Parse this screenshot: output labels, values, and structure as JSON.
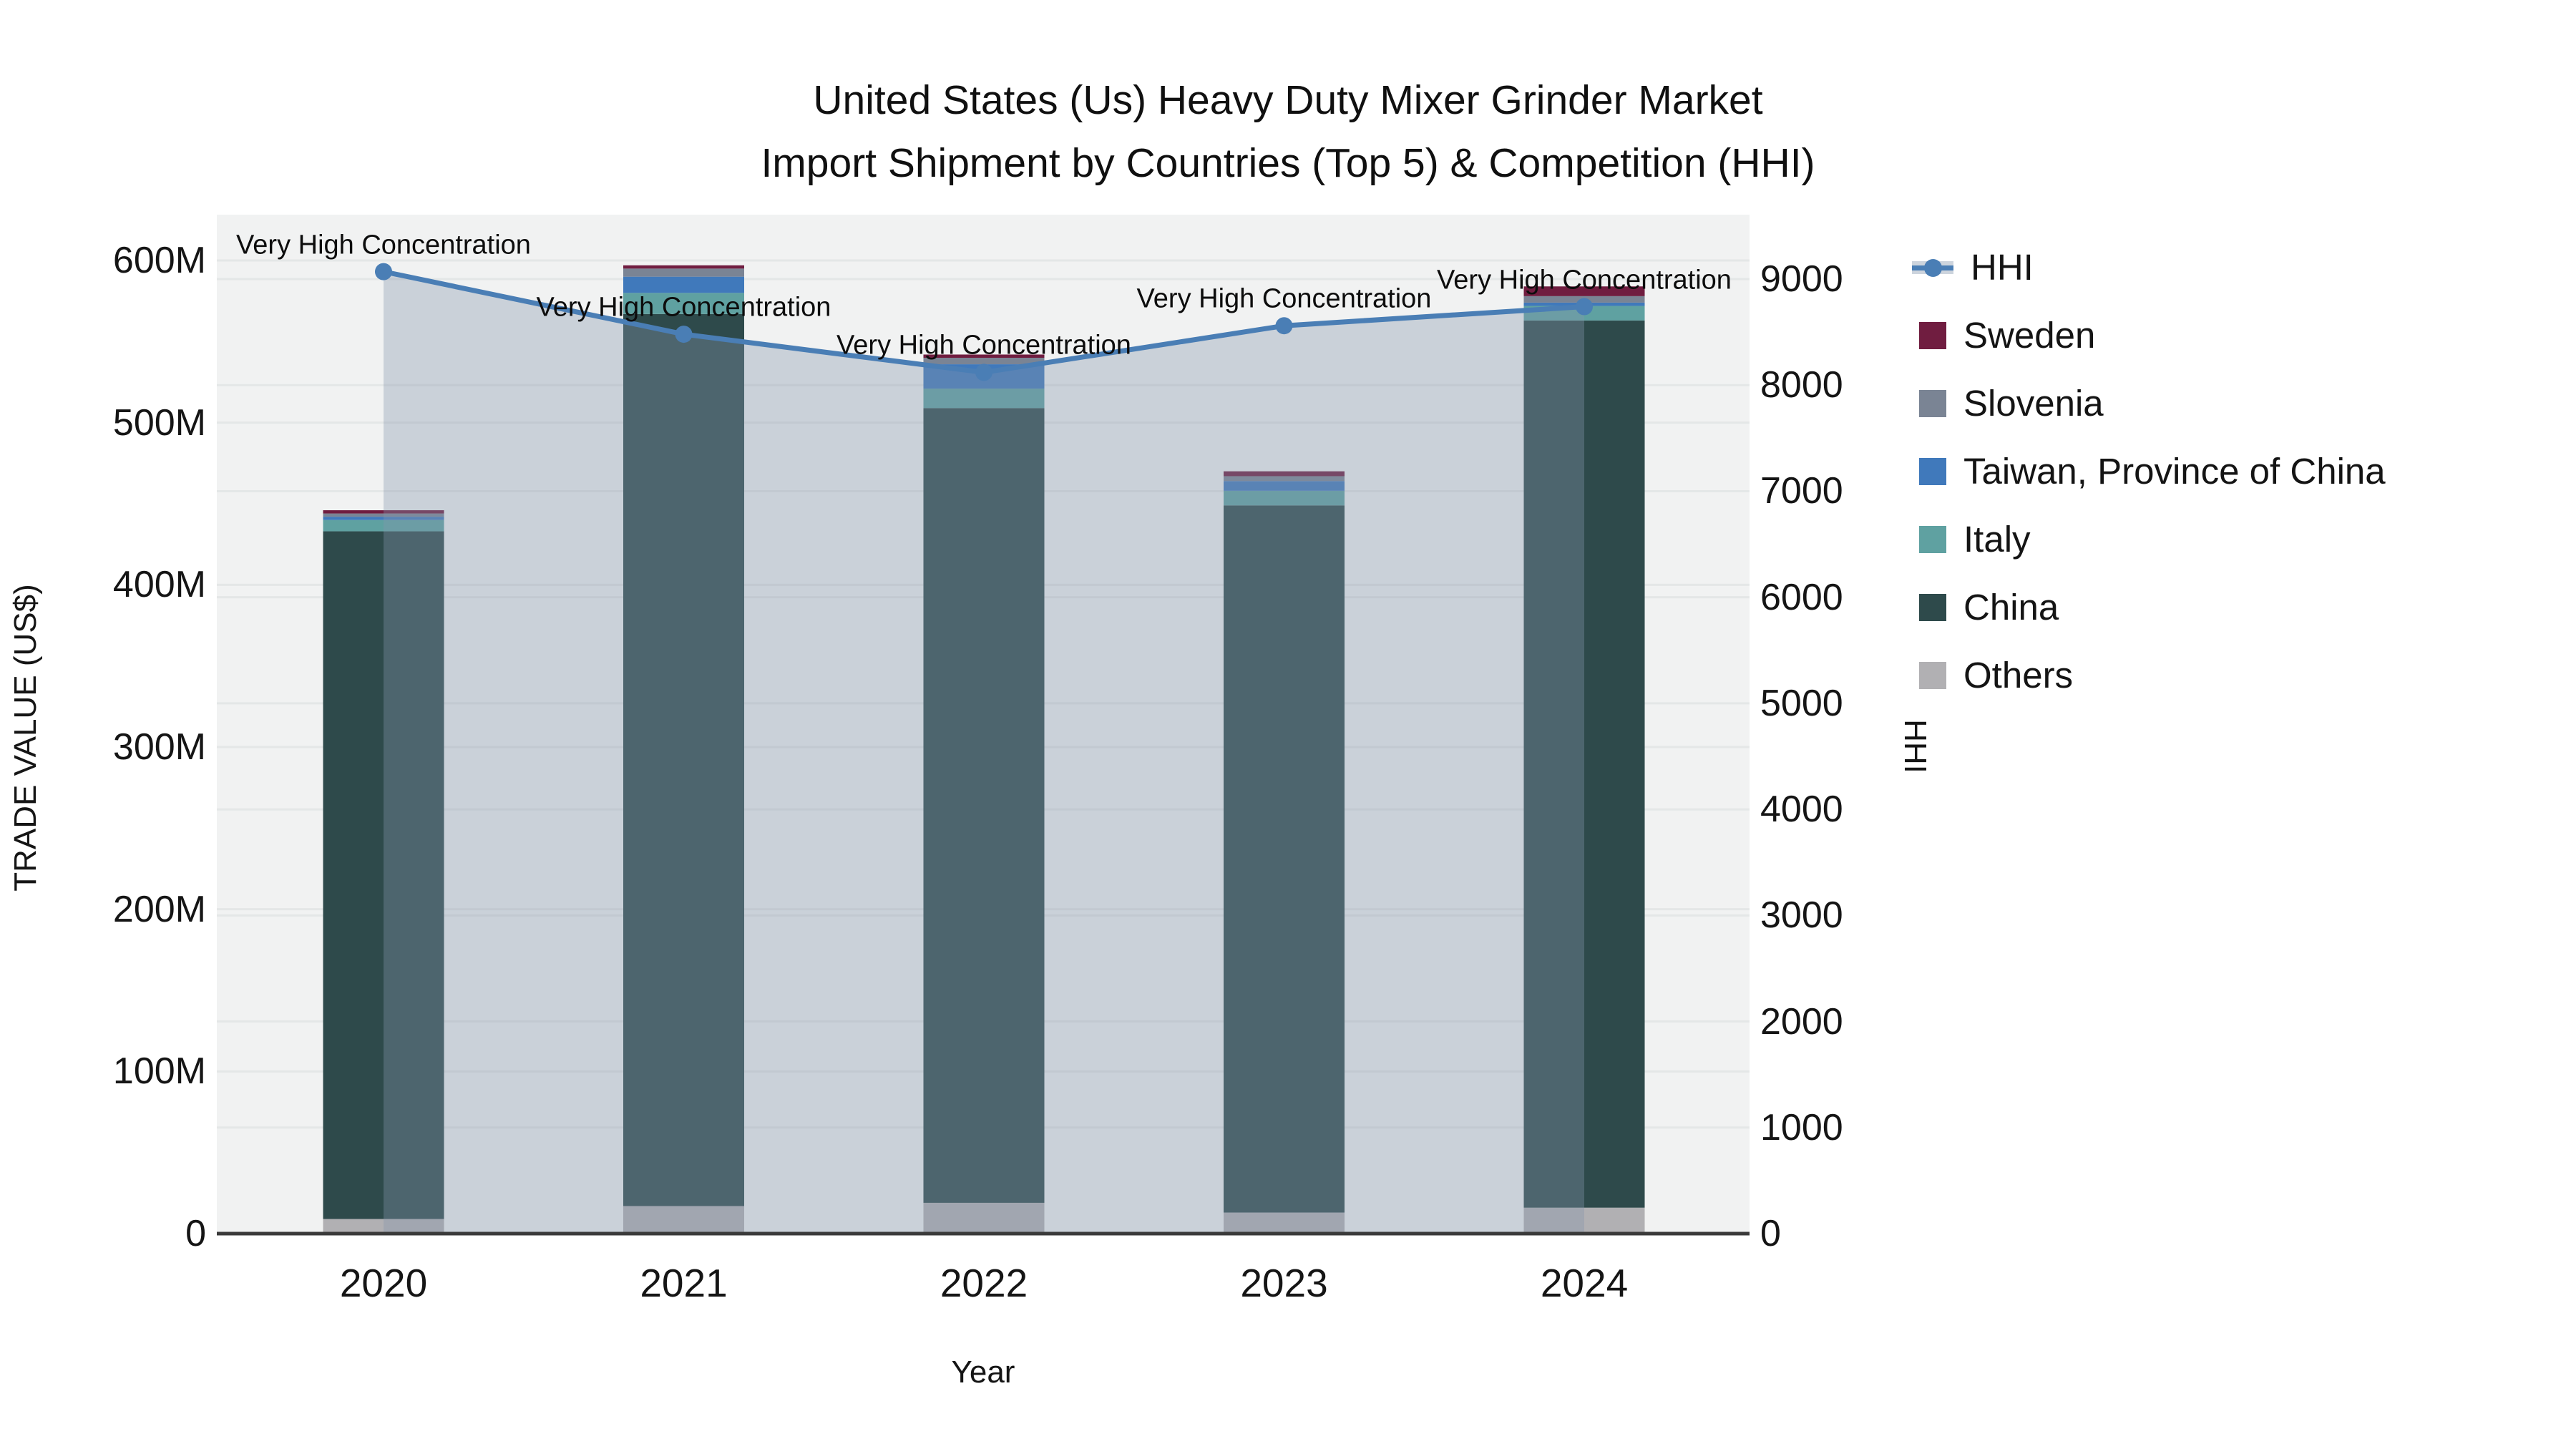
{
  "title": {
    "line1": "United States (Us) Heavy Duty Mixer Grinder Market",
    "line2": "Import Shipment by Countries (Top 5) & Competition (HHI)"
  },
  "axes": {
    "y_left": {
      "title": "TRADE VALUE (US$)",
      "ticks": [
        "0",
        "100M",
        "200M",
        "300M",
        "400M",
        "500M",
        "600M"
      ]
    },
    "y_right": {
      "title": "HHI",
      "ticks": [
        "0",
        "1000",
        "2000",
        "3000",
        "4000",
        "5000",
        "6000",
        "7000",
        "8000",
        "9000"
      ]
    },
    "x": {
      "title": "Year",
      "ticks": [
        "2020",
        "2021",
        "2022",
        "2023",
        "2024"
      ]
    }
  },
  "legend": [
    {
      "label": "HHI",
      "type": "line",
      "color": "#4a7eb5",
      "band": "#cdd4dd"
    },
    {
      "label": "Sweden",
      "type": "swatch",
      "color": "#701d40"
    },
    {
      "label": "Slovenia",
      "type": "swatch",
      "color": "#7a8494"
    },
    {
      "label": "Taiwan, Province of China",
      "type": "swatch",
      "color": "#4079bb"
    },
    {
      "label": "Italy",
      "type": "swatch",
      "color": "#5fa1a1"
    },
    {
      "label": "China",
      "type": "swatch",
      "color": "#2e4a4b"
    },
    {
      "label": "Others",
      "type": "swatch",
      "color": "#b1b0b3"
    }
  ],
  "colors": {
    "plot_bg": "#f1f2f2",
    "grid": "#e4e7e7",
    "axis_line": "#3a3a3a",
    "hhi_line": "#4a7eb5",
    "hhi_fill": "rgba(134,151,173,0.36)"
  },
  "chart_data": {
    "type": "combo: stacked bars (left axis) + line with area fill (right axis)",
    "title": "United States (Us) Heavy Duty Mixer Grinder Market Import Shipment by Countries (Top 5) & Competition (HHI)",
    "categories": [
      "2020",
      "2021",
      "2022",
      "2023",
      "2024"
    ],
    "xlabel": "Year",
    "ylabel_left": "TRADE VALUE (US$)",
    "ylabel_right": "HHI",
    "ylim_left_millions": [
      0,
      600
    ],
    "ylim_right": [
      0,
      9000
    ],
    "grid": true,
    "legend_position": "right",
    "bar_unit": "millions US$",
    "series": [
      {
        "name": "Others",
        "color": "#b1b0b3",
        "values": [
          9,
          17,
          19,
          13,
          16
        ]
      },
      {
        "name": "China",
        "color": "#2e4a4b",
        "values": [
          424,
          550,
          490,
          436,
          547
        ]
      },
      {
        "name": "Italy",
        "color": "#5fa1a1",
        "values": [
          7,
          13,
          12,
          9,
          9
        ]
      },
      {
        "name": "Taiwan, Province of China",
        "color": "#4079bb",
        "values": [
          2,
          10,
          15,
          6,
          2
        ]
      },
      {
        "name": "Slovenia",
        "color": "#7a8494",
        "values": [
          2,
          5,
          4,
          3,
          4
        ]
      },
      {
        "name": "Sweden",
        "color": "#701d40",
        "values": [
          2,
          2,
          2,
          3,
          6
        ]
      }
    ],
    "bar_totals_millions": [
      446,
      597,
      542,
      470,
      584
    ],
    "line_series": {
      "name": "HHI",
      "color": "#4a7eb5",
      "fill": "rgba(134,151,173,0.36)",
      "values": [
        9070,
        8480,
        8120,
        8560,
        8740
      ],
      "point_labels": [
        "Very High Concentration",
        "Very High Concentration",
        "Very High Concentration",
        "Very High Concentration",
        "Very High Concentration"
      ]
    }
  }
}
